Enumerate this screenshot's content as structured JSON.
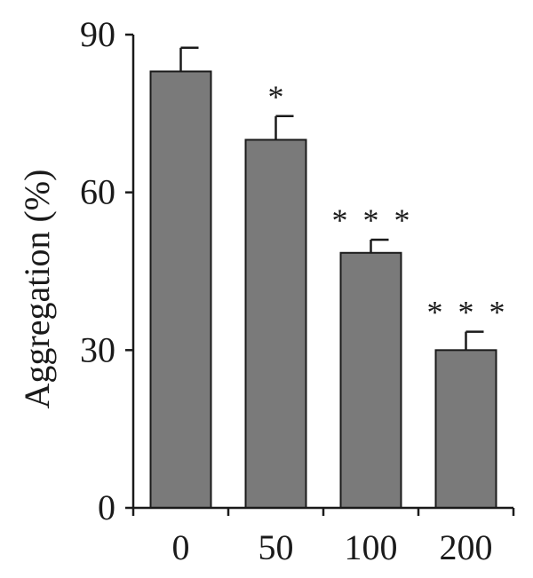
{
  "chart_data": {
    "type": "bar",
    "categories": [
      "0",
      "50",
      "100",
      "200"
    ],
    "values": [
      83,
      70,
      48.5,
      30
    ],
    "errors": [
      4.5,
      4.5,
      2.5,
      3.5
    ],
    "significance": [
      "",
      "*",
      "* * *",
      "* * *"
    ],
    "title": "",
    "xlabel": "",
    "ylabel": "Aggregation (%)",
    "ylim": [
      0,
      90
    ],
    "yticks": [
      0,
      30,
      60,
      90
    ],
    "grid": false,
    "bar_color": "#7a7a7a"
  }
}
